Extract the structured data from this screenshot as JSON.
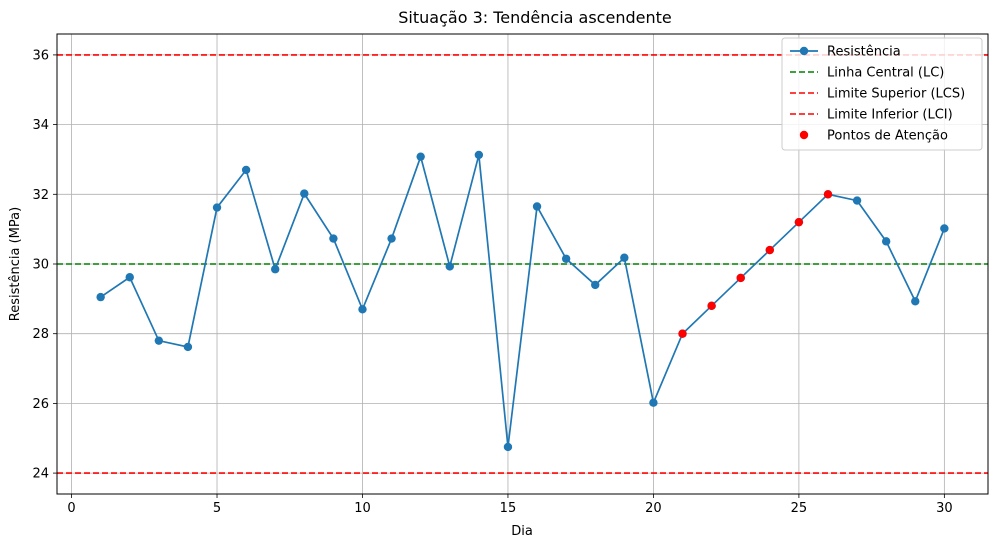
{
  "chart_data": {
    "type": "line",
    "title": "Situação 3: Tendência ascendente",
    "xlabel": "Dia",
    "ylabel": "Resistência (MPa)",
    "xlim": [
      -0.5,
      31.5
    ],
    "ylim": [
      23.4,
      36.6
    ],
    "xticks": [
      0,
      5,
      10,
      15,
      20,
      25,
      30
    ],
    "yticks": [
      24,
      26,
      28,
      30,
      32,
      34,
      36
    ],
    "grid": true,
    "legend_position": "top-right",
    "series": [
      {
        "name": "Resistência",
        "color": "#1f77b4",
        "x": [
          1,
          2,
          3,
          4,
          5,
          6,
          7,
          8,
          9,
          10,
          11,
          12,
          13,
          14,
          15,
          16,
          17,
          18,
          19,
          20,
          21,
          22,
          23,
          24,
          25,
          26,
          27,
          28,
          29,
          30
        ],
        "y": [
          29.05,
          29.62,
          27.8,
          27.62,
          31.62,
          32.7,
          29.85,
          32.02,
          30.73,
          28.7,
          30.73,
          33.08,
          29.93,
          33.13,
          24.75,
          31.65,
          30.15,
          29.4,
          30.18,
          26.02,
          28.0,
          28.8,
          29.6,
          30.4,
          31.2,
          32.0,
          31.82,
          30.65,
          28.93,
          31.02
        ]
      }
    ],
    "reference_lines": [
      {
        "name": "Linha Central (LC)",
        "value": 30,
        "color": "#008000"
      },
      {
        "name": "Limite Superior (LCS)",
        "value": 36,
        "color": "#ff0000"
      },
      {
        "name": "Limite Inferior (LCI)",
        "value": 24,
        "color": "#ff0000"
      }
    ],
    "highlight": {
      "name": "Pontos de Atenção",
      "color": "#ff0000",
      "x": [
        21,
        22,
        23,
        24,
        25,
        26
      ],
      "y": [
        28.0,
        28.8,
        29.6,
        30.4,
        31.2,
        32.0
      ]
    }
  }
}
